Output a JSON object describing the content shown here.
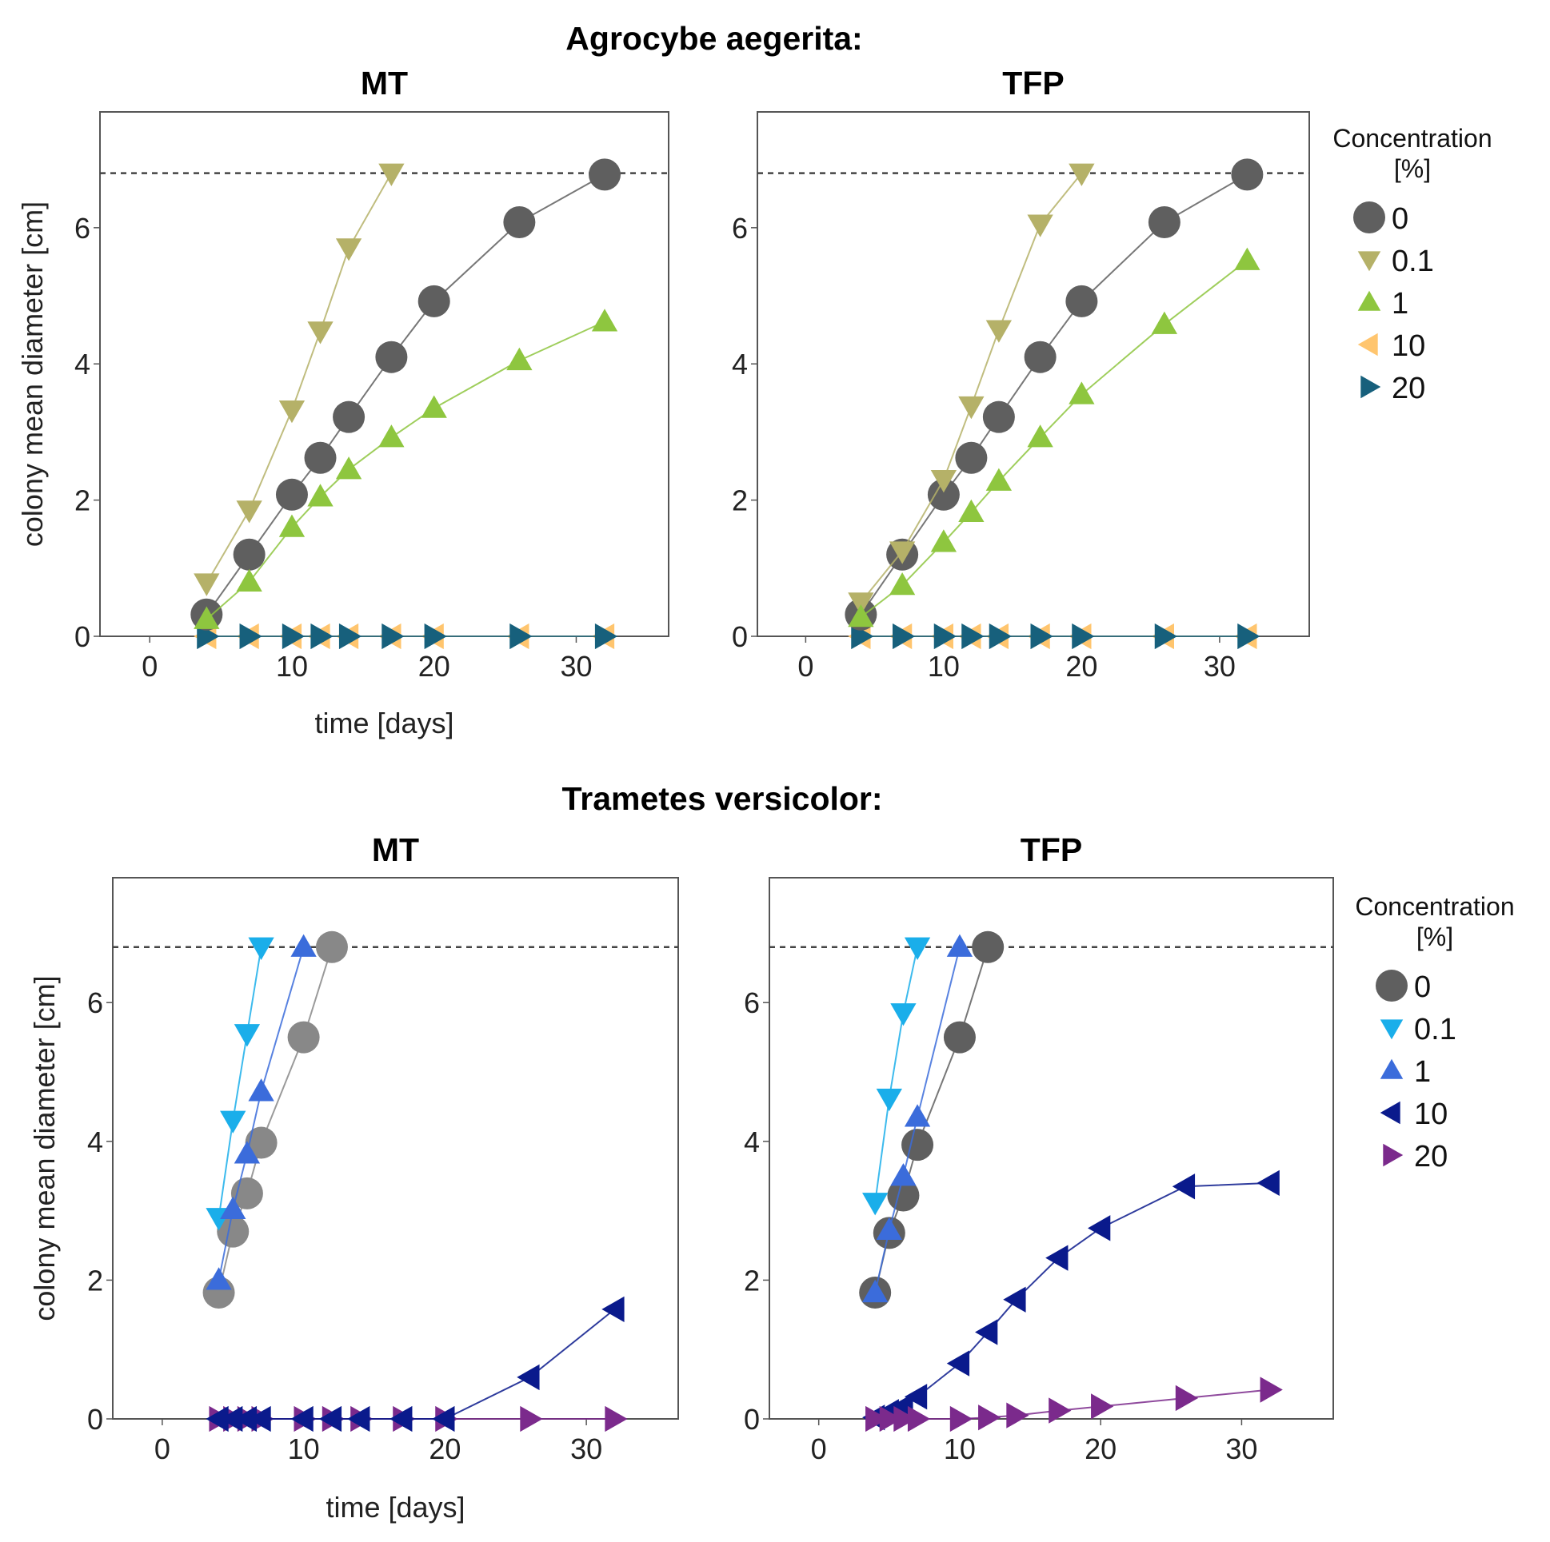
{
  "figure": {
    "section_titles": [
      "Agrocybe aegerita:",
      "Trametes versicolor:"
    ]
  },
  "legends": [
    {
      "title_line1": "Concentration",
      "title_line2": "[%]",
      "entries": [
        {
          "label": "0",
          "marker": "circle",
          "color": "#5f5f5f"
        },
        {
          "label": "0.1",
          "marker": "triangle-down",
          "color": "#b5b168"
        },
        {
          "label": "1",
          "marker": "triangle-up",
          "color": "#8ec63f"
        },
        {
          "label": "10",
          "marker": "triangle-left",
          "color": "#ffc56e"
        },
        {
          "label": "20",
          "marker": "triangle-right",
          "color": "#17607c"
        }
      ]
    },
    {
      "title_line1": "Concentration",
      "title_line2": "[%]",
      "entries": [
        {
          "label": "0",
          "marker": "circle",
          "color": "#5f5f5f"
        },
        {
          "label": "0.1",
          "marker": "triangle-down",
          "color": "#1aaeea"
        },
        {
          "label": "1",
          "marker": "triangle-up",
          "color": "#3b6cdb"
        },
        {
          "label": "10",
          "marker": "triangle-left",
          "color": "#0a1a8c"
        },
        {
          "label": "20",
          "marker": "triangle-right",
          "color": "#7b2a8c"
        }
      ]
    }
  ],
  "chart_data": [
    {
      "type": "line",
      "group": "Agrocybe aegerita:",
      "title": "MT",
      "xlabel": "time [days]",
      "ylabel": "colony mean diameter [cm]",
      "xlim": [
        -3.5,
        36.5
      ],
      "ylim": [
        0,
        7.7
      ],
      "xticks": [
        0,
        10,
        20,
        30
      ],
      "yticks": [
        0,
        2,
        4,
        6
      ],
      "reference_line": 6.8,
      "series": [
        {
          "name": "0",
          "marker": "circle",
          "color": "#5f5f5f",
          "x": [
            4,
            7,
            10,
            12,
            14,
            17,
            20,
            26,
            32
          ],
          "y": [
            0.32,
            1.2,
            2.08,
            2.62,
            3.22,
            4.1,
            4.92,
            6.08,
            6.78
          ]
        },
        {
          "name": "0.1",
          "marker": "triangle-down",
          "color": "#b5b168",
          "x": [
            4,
            7,
            10,
            12,
            14,
            17
          ],
          "y": [
            0.78,
            1.85,
            3.32,
            4.48,
            5.7,
            6.8
          ]
        },
        {
          "name": "1",
          "marker": "triangle-up",
          "color": "#8ec63f",
          "x": [
            4,
            7,
            10,
            12,
            14,
            17,
            20,
            26,
            32
          ],
          "y": [
            0.25,
            0.8,
            1.6,
            2.05,
            2.45,
            2.92,
            3.35,
            4.05,
            4.62
          ]
        },
        {
          "name": "10",
          "marker": "triangle-left",
          "color": "#ffc56e",
          "x": [
            4,
            7,
            10,
            12,
            14,
            17,
            20,
            26,
            32
          ],
          "y": [
            0,
            0,
            0,
            0,
            0,
            0,
            0,
            0,
            0
          ]
        },
        {
          "name": "20",
          "marker": "triangle-right",
          "color": "#17607c",
          "x": [
            4,
            7,
            10,
            12,
            14,
            17,
            20,
            26,
            32
          ],
          "y": [
            0,
            0,
            0,
            0,
            0,
            0,
            0,
            0,
            0
          ]
        }
      ]
    },
    {
      "type": "line",
      "group": "Agrocybe aegerita:",
      "title": "TFP",
      "xlabel": "",
      "ylabel": "",
      "xlim": [
        -3.5,
        36.5
      ],
      "ylim": [
        0,
        7.7
      ],
      "xticks": [
        0,
        10,
        20,
        30
      ],
      "yticks": [
        0,
        2,
        4,
        6
      ],
      "reference_line": 6.8,
      "series": [
        {
          "name": "0",
          "marker": "circle",
          "color": "#5f5f5f",
          "x": [
            4,
            7,
            10,
            12,
            14,
            17,
            20,
            26,
            32
          ],
          "y": [
            0.32,
            1.2,
            2.08,
            2.62,
            3.22,
            4.1,
            4.92,
            6.08,
            6.78
          ]
        },
        {
          "name": "0.1",
          "marker": "triangle-down",
          "color": "#b5b168",
          "x": [
            4,
            7,
            10,
            12,
            14,
            17,
            20
          ],
          "y": [
            0.5,
            1.25,
            2.3,
            3.38,
            4.5,
            6.05,
            6.8
          ]
        },
        {
          "name": "1",
          "marker": "triangle-up",
          "color": "#8ec63f",
          "x": [
            4,
            7,
            10,
            12,
            14,
            17,
            20,
            26,
            32
          ],
          "y": [
            0.28,
            0.75,
            1.38,
            1.82,
            2.28,
            2.92,
            3.55,
            4.58,
            5.52
          ]
        },
        {
          "name": "10",
          "marker": "triangle-left",
          "color": "#ffc56e",
          "x": [
            4,
            7,
            10,
            12,
            14,
            17,
            20,
            26,
            32
          ],
          "y": [
            0,
            0,
            0,
            0,
            0,
            0,
            0,
            0,
            0
          ]
        },
        {
          "name": "20",
          "marker": "triangle-right",
          "color": "#17607c",
          "x": [
            4,
            7,
            10,
            12,
            14,
            17,
            20,
            26,
            32
          ],
          "y": [
            0,
            0,
            0,
            0,
            0,
            0,
            0,
            0,
            0
          ]
        }
      ]
    },
    {
      "type": "line",
      "group": "Trametes versicolor:",
      "title": "MT",
      "xlabel": "time [days]",
      "ylabel": "colony mean diameter [cm]",
      "xlim": [
        -3.5,
        36.5
      ],
      "ylim": [
        0,
        7.8
      ],
      "xticks": [
        0,
        10,
        20,
        30
      ],
      "yticks": [
        0,
        2,
        4,
        6
      ],
      "reference_line": 6.8,
      "series": [
        {
          "name": "0",
          "marker": "circle",
          "color": "#888888",
          "x": [
            4,
            5,
            6,
            7,
            10,
            12
          ],
          "y": [
            1.82,
            2.7,
            3.25,
            3.98,
            5.5,
            6.8
          ]
        },
        {
          "name": "0.1",
          "marker": "triangle-down",
          "color": "#1aaeea",
          "x": [
            4,
            5,
            6,
            7
          ],
          "y": [
            2.9,
            4.3,
            5.55,
            6.8
          ]
        },
        {
          "name": "1",
          "marker": "triangle-up",
          "color": "#3b6cdb",
          "x": [
            4,
            5,
            6,
            7,
            10
          ],
          "y": [
            2.0,
            3.02,
            3.82,
            4.72,
            6.8
          ]
        },
        {
          "name": "10",
          "marker": "triangle-left",
          "color": "#0a1a8c",
          "x": [
            4,
            5,
            6,
            7,
            10,
            12,
            14,
            17,
            20,
            26,
            32
          ],
          "y": [
            0,
            0,
            0,
            0,
            0,
            0,
            0,
            0,
            0,
            0.6,
            1.58
          ]
        },
        {
          "name": "20",
          "marker": "triangle-right",
          "color": "#7b2a8c",
          "x": [
            4,
            5,
            6,
            7,
            10,
            12,
            14,
            17,
            20,
            26,
            32
          ],
          "y": [
            0,
            0,
            0,
            0,
            0,
            0,
            0,
            0,
            0,
            0,
            0
          ]
        }
      ]
    },
    {
      "type": "line",
      "group": "Trametes versicolor:",
      "title": "TFP",
      "xlabel": "",
      "ylabel": "",
      "xlim": [
        -3.5,
        36.5
      ],
      "ylim": [
        0,
        7.8
      ],
      "xticks": [
        0,
        10,
        20,
        30
      ],
      "yticks": [
        0,
        2,
        4,
        6
      ],
      "reference_line": 6.8,
      "series": [
        {
          "name": "0",
          "marker": "circle",
          "color": "#5f5f5f",
          "x": [
            4,
            5,
            6,
            7,
            10,
            12
          ],
          "y": [
            1.82,
            2.68,
            3.22,
            3.95,
            5.5,
            6.8
          ]
        },
        {
          "name": "0.1",
          "marker": "triangle-down",
          "color": "#1aaeea",
          "x": [
            4,
            5,
            6,
            7
          ],
          "y": [
            3.12,
            4.62,
            5.85,
            6.8
          ]
        },
        {
          "name": "1",
          "marker": "triangle-up",
          "color": "#3b6cdb",
          "x": [
            4,
            5,
            6,
            7,
            10
          ],
          "y": [
            1.82,
            2.72,
            3.5,
            4.35,
            6.8
          ]
        },
        {
          "name": "10",
          "marker": "triangle-left",
          "color": "#0a1a8c",
          "x": [
            4,
            5,
            6,
            7,
            10,
            12,
            14,
            17,
            20,
            26,
            32
          ],
          "y": [
            0.02,
            0.1,
            0.18,
            0.32,
            0.8,
            1.25,
            1.72,
            2.32,
            2.75,
            3.35,
            3.4
          ]
        },
        {
          "name": "20",
          "marker": "triangle-right",
          "color": "#7b2a8c",
          "x": [
            4,
            5,
            6,
            7,
            10,
            12,
            14,
            17,
            20,
            26,
            32
          ],
          "y": [
            0,
            0,
            0,
            0,
            0,
            0.02,
            0.05,
            0.12,
            0.18,
            0.3,
            0.42
          ]
        }
      ]
    }
  ]
}
